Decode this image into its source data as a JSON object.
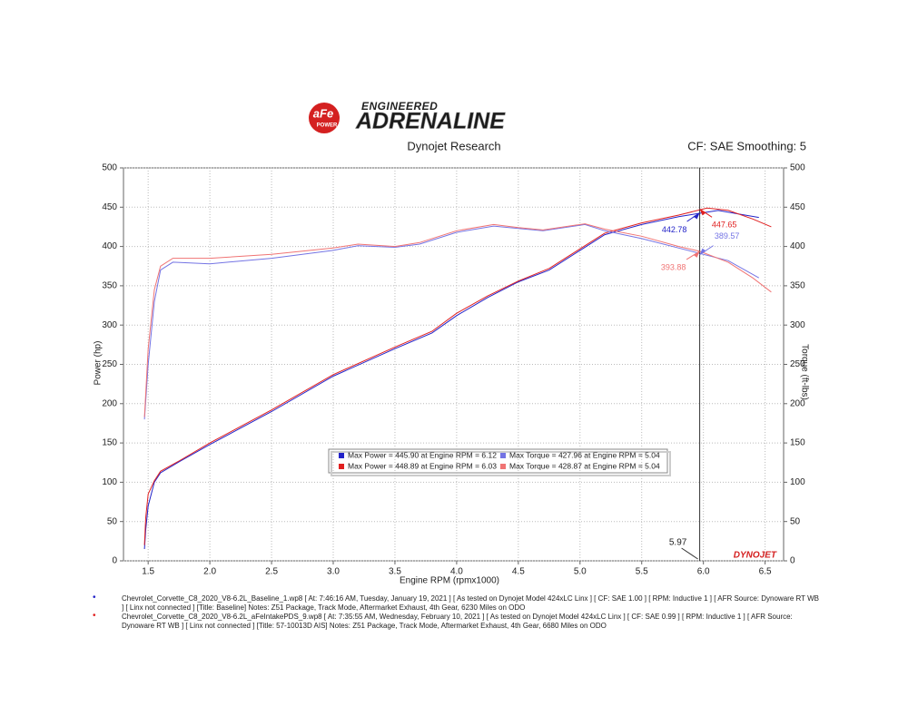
{
  "chart_data": {
    "type": "line",
    "brand": {
      "badge": "aFe",
      "badge_sub": "POWER",
      "tagline": "ENGINEERED",
      "wordmark": "ADRENALINE",
      "footer_logo": "DYNOJET"
    },
    "title": "Dynojet Research",
    "subtitle": "CF: SAE Smoothing: 5",
    "x_label": "Engine RPM (rpmx1000)",
    "y_label": "Power (hp)",
    "y2_label": "Torque (ft-lbs)",
    "xlim": [
      1.3,
      6.65
    ],
    "ylim": [
      0,
      500
    ],
    "y2lim": [
      0,
      500
    ],
    "xticks": [
      1.5,
      {
        "value": 2,
        "label": "2.0"
      },
      2.5,
      {
        "value": 3,
        "label": "3.0"
      },
      3.5,
      {
        "value": 4,
        "label": "4.0"
      },
      4.5,
      {
        "value": 5,
        "label": "5.0"
      },
      5.5,
      {
        "value": 6,
        "label": "6.0"
      },
      6.5
    ],
    "yticks": [
      0,
      50,
      100,
      150,
      200,
      250,
      300,
      350,
      400,
      450,
      500
    ],
    "y2ticks": [
      0,
      50,
      100,
      150,
      200,
      250,
      300,
      350,
      400,
      450,
      500
    ],
    "grid": true,
    "cursor": {
      "x": 5.97
    },
    "series": [
      {
        "name": "Max Power = 445.90 at Engine RPM = 6.12",
        "color": "#2323c8",
        "axis": "y",
        "cursor_value": 442.78,
        "x": [
          1.47,
          1.48,
          1.5,
          1.55,
          1.6,
          1.75,
          2.0,
          2.5,
          3.0,
          3.5,
          3.8,
          4.0,
          4.25,
          4.5,
          4.75,
          5.0,
          5.2,
          5.5,
          5.8,
          6.0,
          6.12,
          6.3,
          6.45
        ],
        "values": [
          15,
          40,
          70,
          100,
          112,
          126,
          148,
          190,
          235,
          270,
          290,
          312,
          335,
          355,
          370,
          395,
          415,
          428,
          438,
          443,
          445.9,
          441,
          437
        ]
      },
      {
        "name": "Max Power = 448.89 at Engine RPM = 6.03",
        "color": "#e02020",
        "axis": "y",
        "cursor_value": 447.65,
        "x": [
          1.47,
          1.48,
          1.5,
          1.55,
          1.6,
          1.75,
          2.0,
          2.5,
          3.0,
          3.5,
          3.8,
          4.0,
          4.25,
          4.5,
          4.75,
          5.0,
          5.2,
          5.5,
          5.8,
          6.03,
          6.2,
          6.4,
          6.55
        ],
        "values": [
          20,
          55,
          85,
          102,
          114,
          127,
          150,
          192,
          237,
          272,
          292,
          315,
          337,
          356,
          372,
          397,
          417,
          430,
          440,
          448.89,
          446,
          435,
          425
        ]
      },
      {
        "name": "Max Torque = 427.96 at Engine RPM = 5.04",
        "color": "#7474e4",
        "axis": "y2",
        "cursor_value": 389.57,
        "x": [
          1.47,
          1.5,
          1.55,
          1.6,
          1.7,
          2.0,
          2.5,
          3.0,
          3.2,
          3.5,
          3.7,
          4.0,
          4.3,
          4.5,
          4.7,
          5.04,
          5.2,
          5.5,
          5.8,
          6.0,
          6.2,
          6.45
        ],
        "values": [
          180,
          250,
          330,
          370,
          380,
          378,
          385,
          395,
          401,
          399,
          403,
          418,
          426,
          423,
          420,
          427.96,
          420,
          410,
          398,
          390,
          382,
          360
        ]
      },
      {
        "name": "Max Torque = 428.87 at Engine RPM = 5.04",
        "color": "#f07474",
        "axis": "y2",
        "cursor_value": 393.88,
        "x": [
          1.47,
          1.5,
          1.55,
          1.6,
          1.7,
          2.0,
          2.5,
          3.0,
          3.2,
          3.5,
          3.7,
          4.0,
          4.3,
          4.5,
          4.7,
          5.04,
          5.2,
          5.5,
          5.8,
          5.97,
          6.2,
          6.4,
          6.55
        ],
        "values": [
          183,
          270,
          345,
          375,
          385,
          385,
          390,
          398,
          403,
          400,
          405,
          420,
          428,
          424,
          421,
          428.87,
          422,
          413,
          400,
          393.88,
          380,
          360,
          342
        ]
      }
    ],
    "notes": [
      {
        "color": "#2323c8",
        "text": "Chevrolet_Corvette_C8_2020_V8-6.2L_Baseline_1.wp8 [ At: 7:46:16 AM, Tuesday, January 19, 2021 ] [ As tested on Dynojet Model 424xLC Linx ] [ CF: SAE 1.00 ] [ RPM: Inductive 1 ] [ AFR Source: Dynoware RT WB ] [ Linx not connected ] [Title: Baseline]  Notes: Z51 Package, Track Mode, Aftermarket Exhaust, 4th Gear, 6230 Miles on ODO"
      },
      {
        "color": "#e02020",
        "text": "Chevrolet_Corvette_C8_2020_V8-6.2L_aFeIntakePDS_9.wp8 [ At: 7:35:55 AM, Wednesday, February 10, 2021 ] [ As tested on Dynojet Model 424xLC Linx ] [ CF: SAE 0.99 ] [ RPM: Inductive 1 ] [ AFR Source: Dynoware RT WB ] [ Linx not connected ] [Title: 57-10013D AIS]  Notes: Z51 Package, Track Mode, Aftermarket Exhaust, 4th Gear, 6680 Miles on ODO"
      }
    ]
  }
}
